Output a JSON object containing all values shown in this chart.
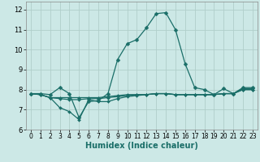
{
  "xlabel": "Humidex (Indice chaleur)",
  "xlim": [
    -0.5,
    23.5
  ],
  "ylim": [
    6,
    12.4
  ],
  "yticks": [
    6,
    7,
    8,
    9,
    10,
    11,
    12
  ],
  "xticks": [
    0,
    1,
    2,
    3,
    4,
    5,
    6,
    7,
    8,
    9,
    10,
    11,
    12,
    13,
    14,
    15,
    16,
    17,
    18,
    19,
    20,
    21,
    22,
    23
  ],
  "background_color": "#cce8e6",
  "grid_color": "#b0ceca",
  "line_color": "#1a6e68",
  "series": [
    {
      "x": [
        0,
        1,
        2,
        3,
        4,
        5,
        6,
        7,
        8,
        9,
        10,
        11,
        12,
        13,
        14,
        15,
        16,
        17,
        18,
        19,
        20,
        21,
        22,
        23
      ],
      "y": [
        7.8,
        7.8,
        7.75,
        8.1,
        7.8,
        6.6,
        7.4,
        7.45,
        7.8,
        9.5,
        10.3,
        10.5,
        11.1,
        11.8,
        11.85,
        11.0,
        9.3,
        8.1,
        8.0,
        7.75,
        8.05,
        7.8,
        8.1,
        8.1
      ]
    },
    {
      "x": [
        0,
        1,
        2,
        3,
        4,
        5,
        6,
        7,
        8,
        9,
        10,
        11,
        12,
        13,
        14,
        15,
        16,
        17,
        18,
        19,
        20,
        21,
        22,
        23
      ],
      "y": [
        7.8,
        7.75,
        7.6,
        7.1,
        6.9,
        6.5,
        7.5,
        7.4,
        7.4,
        7.55,
        7.65,
        7.7,
        7.75,
        7.8,
        7.8,
        7.75,
        7.75,
        7.75,
        7.75,
        7.75,
        7.8,
        7.8,
        8.05,
        8.05
      ]
    },
    {
      "x": [
        0,
        1,
        2,
        3,
        4,
        5,
        6,
        7,
        8,
        9,
        10,
        11,
        12,
        13,
        14,
        15,
        16,
        17,
        18,
        19,
        20,
        21,
        22,
        23
      ],
      "y": [
        7.8,
        7.75,
        7.6,
        7.6,
        7.6,
        7.6,
        7.6,
        7.6,
        7.65,
        7.7,
        7.75,
        7.75,
        7.75,
        7.8,
        7.8,
        7.75,
        7.75,
        7.75,
        7.75,
        7.75,
        7.8,
        7.8,
        8.0,
        8.0
      ]
    },
    {
      "x": [
        0,
        1,
        2,
        3,
        4,
        5,
        6,
        7,
        8,
        9,
        10,
        11,
        12,
        13,
        14,
        15,
        16,
        17,
        18,
        19,
        20,
        21,
        22,
        23
      ],
      "y": [
        7.8,
        7.75,
        7.6,
        7.55,
        7.5,
        7.5,
        7.55,
        7.55,
        7.6,
        7.65,
        7.7,
        7.75,
        7.75,
        7.8,
        7.8,
        7.75,
        7.75,
        7.75,
        7.75,
        7.75,
        7.8,
        7.8,
        8.0,
        8.0
      ]
    }
  ],
  "marker_style": "D",
  "marker_size": 2.5,
  "linewidth": 0.9,
  "tick_fontsize": 6,
  "xlabel_fontsize": 7
}
